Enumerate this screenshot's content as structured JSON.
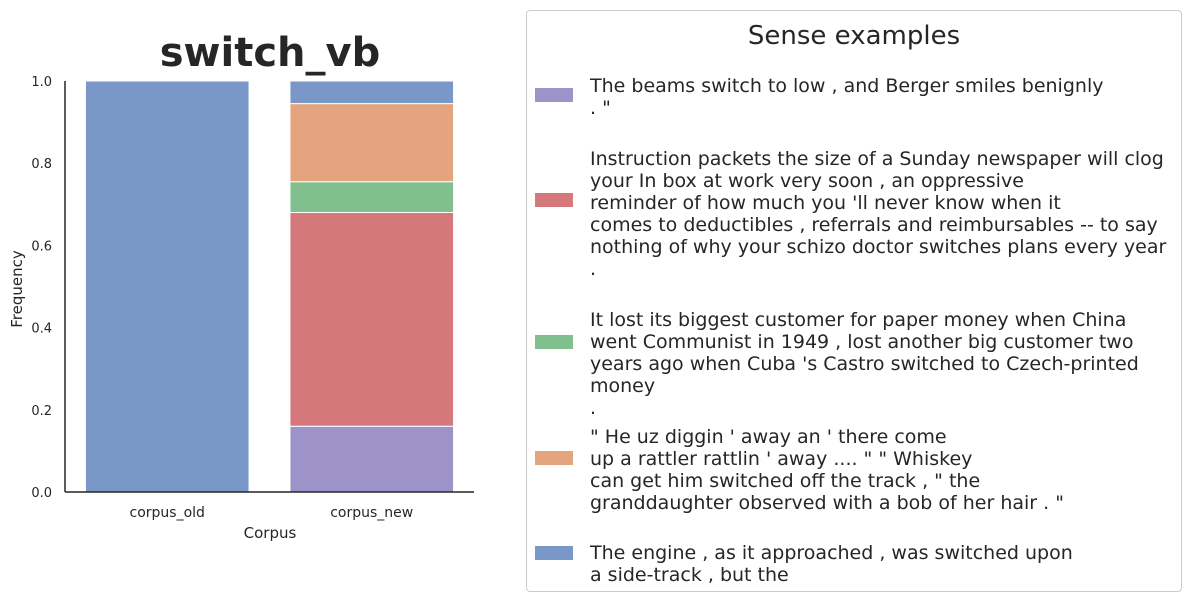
{
  "chart_data": {
    "type": "bar",
    "stacked": true,
    "title": "switch_vb",
    "xlabel": "Corpus",
    "ylabel": "Frequency",
    "ylim": [
      0,
      1
    ],
    "yticks": [
      "0.0",
      "0.2",
      "0.4",
      "0.6",
      "0.8",
      "1.0"
    ],
    "categories": [
      "corpus_old",
      "corpus_new"
    ],
    "grid": false,
    "legend_placement": "right",
    "series": [
      {
        "color": "#9d93c8",
        "values": [
          0.0,
          0.16
        ]
      },
      {
        "color": "#d4787b",
        "values": [
          0.0,
          0.52
        ]
      },
      {
        "color": "#82bf8f",
        "values": [
          0.0,
          0.075
        ]
      },
      {
        "color": "#e4a47e",
        "values": [
          0.0,
          0.19
        ]
      },
      {
        "color": "#7a98c7",
        "values": [
          1.0,
          0.055
        ]
      }
    ]
  },
  "legend": {
    "title": "Sense examples",
    "entries": [
      {
        "color": "#9d93c8",
        "text": "The beams switch to low , and Berger smiles benignly\n. \""
      },
      {
        "color": "#d4787b",
        "text": "Instruction packets the size of a Sunday newspaper will clog\nyour In box at work very soon , an oppressive\nreminder of how much you 'll never know when it\ncomes to deductibles , referrals and reimbursables -- to say\nnothing of why your schizo doctor switches plans every year\n."
      },
      {
        "color": "#82bf8f",
        "text": "It lost its biggest customer for paper money when China\nwent Communist in 1949 , lost another big customer two\nyears ago when Cuba 's Castro switched to Czech-printed money\n."
      },
      {
        "color": "#e4a47e",
        "text": "\" He uz diggin ' away an ' there come\nup a rattler rattlin ' away .... \" \" Whiskey\ncan get him switched off the track , \" the\ngranddaughter observed with a bob of her hair . \""
      },
      {
        "color": "#7a98c7",
        "text": "The engine , as it approached , was switched upon\na side-track , but the"
      }
    ]
  }
}
